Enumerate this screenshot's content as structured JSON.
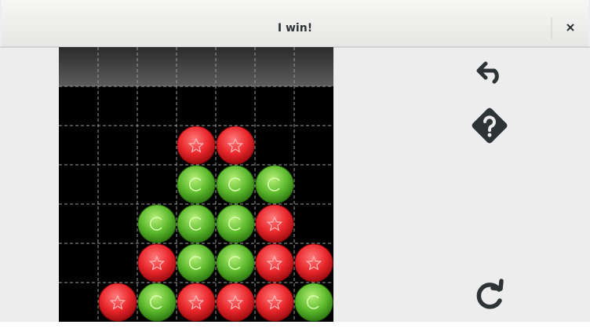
{
  "header": {
    "title": "I win!"
  },
  "board": {
    "columns": 7,
    "rows": [
      [
        null,
        null,
        null,
        null,
        null,
        null,
        null
      ],
      [
        null,
        null,
        null,
        "red",
        "red",
        null,
        null
      ],
      [
        null,
        null,
        null,
        "green",
        "green",
        "green",
        null
      ],
      [
        null,
        null,
        "green",
        "green",
        "green",
        "red",
        null
      ],
      [
        null,
        null,
        "red",
        "green",
        "green",
        "red",
        "red"
      ],
      [
        null,
        "red",
        "green",
        "red",
        "red",
        "red",
        "green"
      ]
    ]
  }
}
